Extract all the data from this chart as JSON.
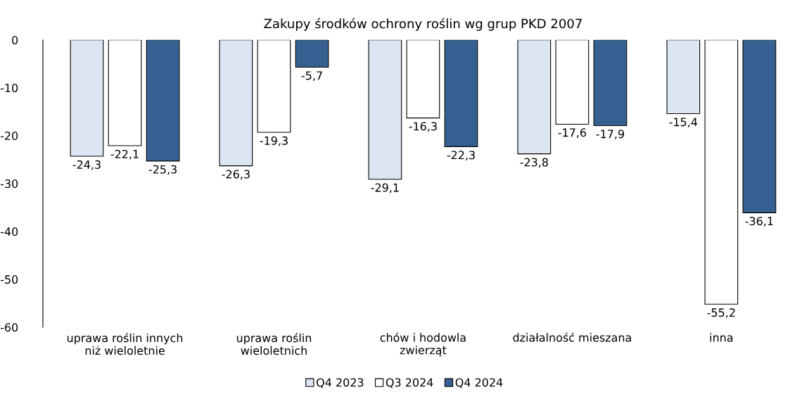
{
  "chart_data": {
    "type": "bar",
    "title": "Zakupy środków ochrony roślin wg grup PKD 2007",
    "categories": [
      "uprawa roślin innych\nniż wieloletnie",
      "uprawa roślin\nwieloletnich",
      "chów i hodowla\nzwierząt",
      "działalność mieszana",
      "inna"
    ],
    "series": [
      {
        "name": "Q4 2023",
        "color": "#dce6f2",
        "values": [
          -24.3,
          -26.3,
          -29.1,
          -23.8,
          -15.4
        ],
        "value_labels": [
          "-24,3",
          "-26,3",
          "-29,1",
          "-23,8",
          "-15,4"
        ]
      },
      {
        "name": "Q3 2024",
        "color": "#ffffff",
        "values": [
          -22.1,
          -19.3,
          -16.3,
          -17.6,
          -55.2
        ],
        "value_labels": [
          "-22,1",
          "-19,3",
          "-16,3",
          "-17,6",
          "-55,2"
        ]
      },
      {
        "name": "Q4 2024",
        "color": "#376092",
        "values": [
          -25.3,
          -5.7,
          -22.3,
          -17.9,
          -36.1
        ],
        "value_labels": [
          "-25,3",
          "-5,7",
          "-22,3",
          "-17,9",
          "-36,1"
        ]
      }
    ],
    "ylim": [
      -60,
      0
    ],
    "yticks": [
      0,
      -10,
      -20,
      -30,
      -40,
      -50,
      -60
    ],
    "grid": false,
    "legend": "bottom"
  }
}
